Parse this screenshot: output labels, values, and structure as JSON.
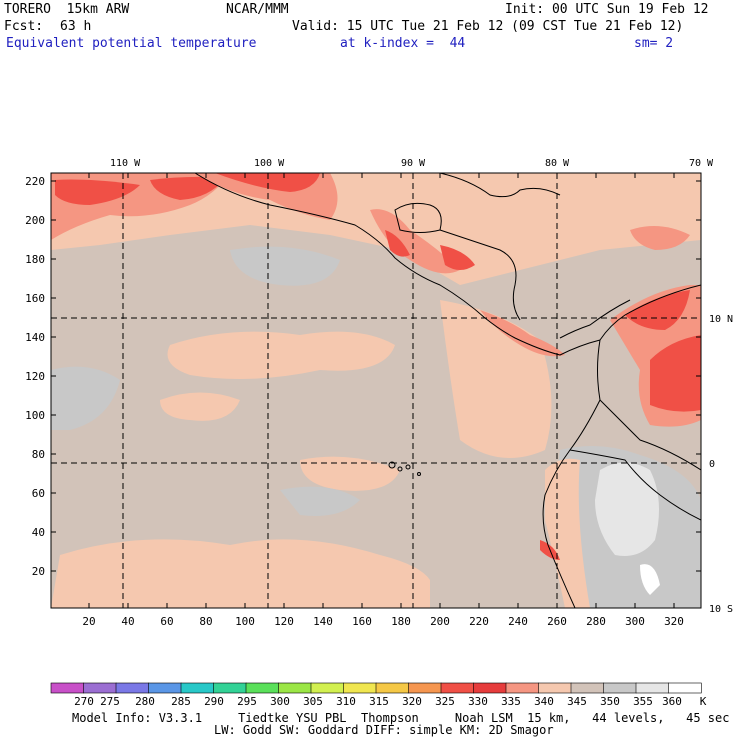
{
  "header": {
    "model": "TORERO  15km ARW",
    "center": "NCAR/MMM",
    "init": "Init: 00 UTC Sun 19 Feb 12",
    "fcst_label": "Fcst:",
    "fcst_hours": "63 h",
    "valid": "Valid: 15 UTC Tue 21 Feb 12 (09 CST Tue 21 Feb 12)",
    "field": "Equivalent potential temperature",
    "level": "at k-index =  44",
    "smooth": "sm= 2"
  },
  "map": {
    "top_lon_labels": [
      "110 W",
      "100 W",
      "90 W",
      "80 W",
      "70 W"
    ],
    "right_lat_labels": [
      "10 N",
      "0",
      "10 S"
    ],
    "left_ticks": [
      "220",
      "200",
      "180",
      "160",
      "140",
      "120",
      "100",
      "80",
      "60",
      "40",
      "20"
    ],
    "bottom_ticks": [
      "20",
      "40",
      "60",
      "80",
      "100",
      "120",
      "140",
      "160",
      "180",
      "200",
      "220",
      "240",
      "260",
      "280",
      "300",
      "320"
    ]
  },
  "colorbar": {
    "labels": [
      "270",
      "275",
      "280",
      "285",
      "290",
      "295",
      "300",
      "305",
      "310",
      "315",
      "320",
      "325",
      "330",
      "335",
      "340",
      "345",
      "350",
      "355",
      "360"
    ],
    "unit": "K",
    "colors": [
      "#c850c8",
      "#9b6ed2",
      "#7a78e6",
      "#5a96e6",
      "#28c8c8",
      "#32d296",
      "#5ae05a",
      "#9be646",
      "#d2f050",
      "#f0e650",
      "#f5c846",
      "#f59650",
      "#f05046",
      "#e63c3c",
      "#f59682",
      "#f5c8af",
      "#d2c3b9",
      "#c8c8c8",
      "#e6e6e6",
      "#ffffff"
    ]
  },
  "footer": {
    "line1": "Model Info: V3.3.1     Tiedtke YSU PBL  Thompson     Noah LSM  15 km,   44 levels,   45 sec",
    "line2": "LW: Godd SW: Goddard DIFF: simple KM: 2D Smagor"
  }
}
